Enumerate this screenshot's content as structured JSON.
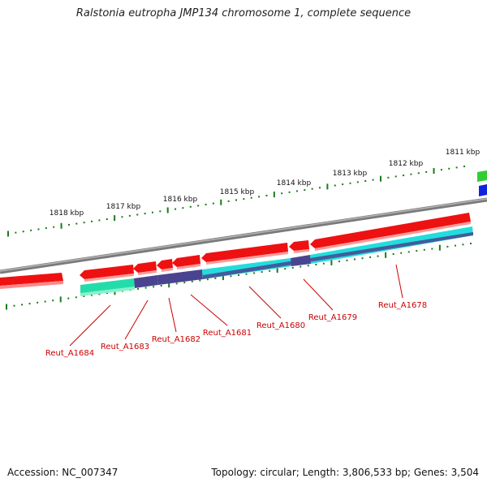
{
  "title": "Ralstonia eutropha JMP134 chromosome 1, complete sequence",
  "footer": {
    "accession": "Accession: NC_007347",
    "summary": "Topology: circular; Length: 3,806,533 bp; Genes: 3,504"
  },
  "ticks": [
    {
      "label": "1811 kbp",
      "kbp": 1811
    },
    {
      "label": "1812 kbp",
      "kbp": 1812
    },
    {
      "label": "1813 kbp",
      "kbp": 1813
    },
    {
      "label": "1814 kbp",
      "kbp": 1814
    },
    {
      "label": "1815 kbp",
      "kbp": 1815
    },
    {
      "label": "1816 kbp",
      "kbp": 1816
    },
    {
      "label": "1817 kbp",
      "kbp": 1817
    },
    {
      "label": "1818 kbp",
      "kbp": 1818
    }
  ],
  "genes": [
    {
      "label": "Reut_A1684"
    },
    {
      "label": "Reut_A1683"
    },
    {
      "label": "Reut_A1682"
    },
    {
      "label": "Reut_A1681"
    },
    {
      "label": "Reut_A1680"
    },
    {
      "label": "Reut_A1679"
    },
    {
      "label": "Reut_A1678"
    }
  ],
  "colors": {
    "cds": "#ee1111",
    "cds_light": "#ff8888",
    "backbone": "#888888",
    "tick": "#1a7a1a",
    "gene_label": "#cc0000",
    "cog_teal": "#22ddaa",
    "cog_indigo": "#4a4490",
    "cog_cyan": "#22dddd",
    "cog_green": "#33cc33",
    "cog_blue": "#1122dd"
  }
}
